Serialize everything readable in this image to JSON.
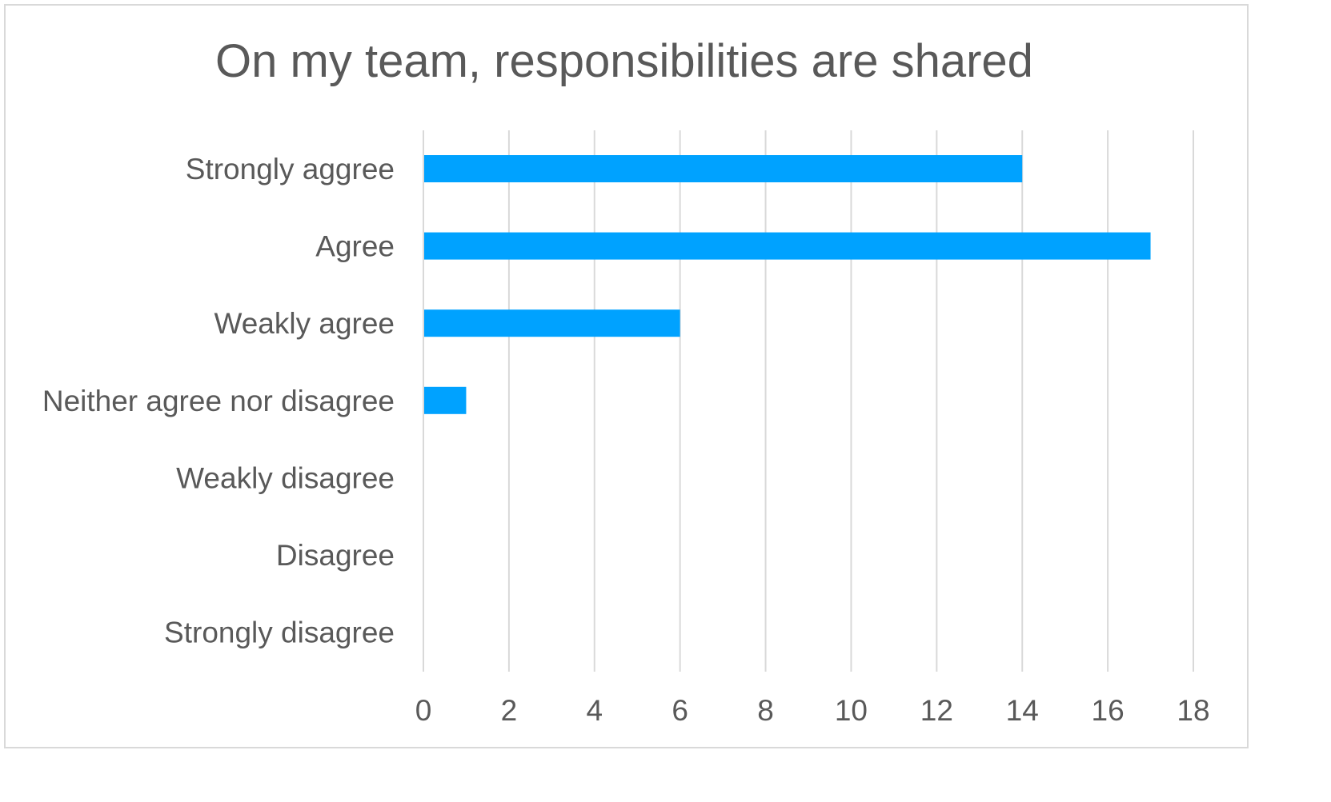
{
  "chart_data": {
    "type": "bar",
    "orientation": "horizontal",
    "title": "On my team, responsibilities are shared",
    "xlabel": "",
    "ylabel": "",
    "categories": [
      "Strongly aggree",
      "Agree",
      "Weakly agree",
      "Neither agree nor disagree",
      "Weakly disagree",
      "Disagree",
      "Strongly disagree"
    ],
    "values": [
      14,
      17,
      6,
      1,
      0,
      0,
      0
    ],
    "xlim": [
      0,
      18
    ],
    "xticks": [
      0,
      2,
      4,
      6,
      8,
      10,
      12,
      14,
      16,
      18
    ],
    "grid": true,
    "legend": "none",
    "colors": {
      "bar": "#00a2ff",
      "grid": "#d9d9d9",
      "text": "#595959",
      "border": "#d9d9d9"
    }
  }
}
